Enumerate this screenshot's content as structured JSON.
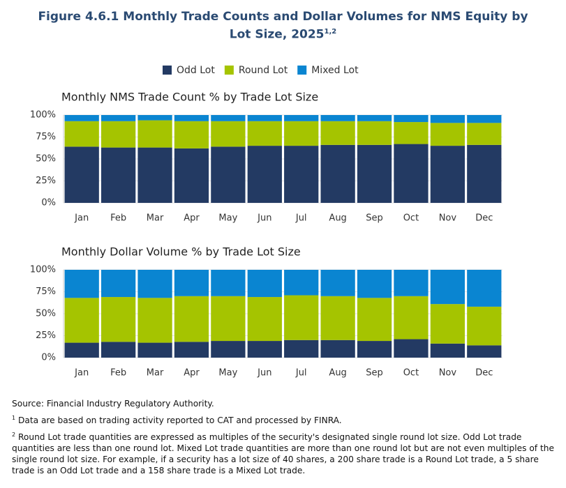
{
  "figure": {
    "title": "Figure 4.6.1 Monthly Trade Counts and Dollar Volumes for NMS Equity by Lot Size, 2025",
    "title_sup": "1,2",
    "source": "Source: Financial Industry Regulatory Authority.",
    "notes": [
      {
        "marker": "1",
        "text": "Data are based on trading activity reported to CAT and processed by FINRA."
      },
      {
        "marker": "2",
        "text": "Round Lot trade quantities are expressed as multiples of the security's designated single round lot size. Odd Lot trade quantities are less than one round lot. Mixed Lot trade quantities are more than one round lot but are not even multiples of the single round lot size.  For example, if a security has a lot size of 40 shares, a 200 share trade is a Round Lot trade, a 5 share trade is an Odd Lot trade and a 158 share trade is a Mixed Lot trade."
      }
    ]
  },
  "chart_data": [
    {
      "type": "stacked_bar",
      "title": "Monthly NMS Trade Count % by Trade Lot Size",
      "categories": [
        "Jan",
        "Feb",
        "Mar",
        "Apr",
        "May",
        "Jun",
        "Jul",
        "Aug",
        "Sep",
        "Oct",
        "Nov",
        "Dec"
      ],
      "series": [
        {
          "name": "Odd Lot",
          "color": "#233a63",
          "values": [
            64,
            63,
            63,
            62,
            64,
            65,
            65,
            66,
            66,
            67,
            65,
            66
          ]
        },
        {
          "name": "Round Lot",
          "color": "#a5c400",
          "values": [
            29,
            30,
            31,
            31,
            29,
            28,
            28,
            27,
            27,
            25,
            26,
            25
          ]
        },
        {
          "name": "Mixed Lot",
          "color": "#0a85d1",
          "values": [
            7,
            7,
            6,
            7,
            7,
            7,
            7,
            7,
            7,
            8,
            9,
            9
          ]
        }
      ],
      "ylim": [
        0,
        100
      ],
      "yticks": [
        {
          "value": 0,
          "label": "0%"
        },
        {
          "value": 25,
          "label": "25%"
        },
        {
          "value": 50,
          "label": "50%"
        },
        {
          "value": 75,
          "label": "75%"
        },
        {
          "value": 100,
          "label": "100%"
        }
      ],
      "grid": true,
      "legend": "top"
    },
    {
      "type": "stacked_bar",
      "title": "Monthly Dollar Volume % by Trade Lot Size",
      "categories": [
        "Jan",
        "Feb",
        "Mar",
        "Apr",
        "May",
        "Jun",
        "Jul",
        "Aug",
        "Sep",
        "Oct",
        "Nov",
        "Dec"
      ],
      "series": [
        {
          "color": "#233a63",
          "values": [
            17,
            18,
            17,
            18,
            19,
            19,
            20,
            20,
            19,
            21,
            16,
            14
          ]
        },
        {
          "color": "#a5c400",
          "values": [
            51,
            51,
            51,
            52,
            51,
            50,
            51,
            50,
            49,
            49,
            45,
            44
          ]
        },
        {
          "color": "#0a85d1",
          "values": [
            32,
            31,
            32,
            30,
            30,
            31,
            29,
            30,
            32,
            30,
            39,
            42
          ]
        }
      ],
      "ylim": [
        0,
        100
      ],
      "yticks": [
        {
          "value": 0,
          "label": "0%"
        },
        {
          "value": 25,
          "label": "25%"
        },
        {
          "value": 50,
          "label": "50%"
        },
        {
          "value": 75,
          "label": "75%"
        },
        {
          "value": 100,
          "label": "100%"
        }
      ],
      "grid": true
    }
  ]
}
